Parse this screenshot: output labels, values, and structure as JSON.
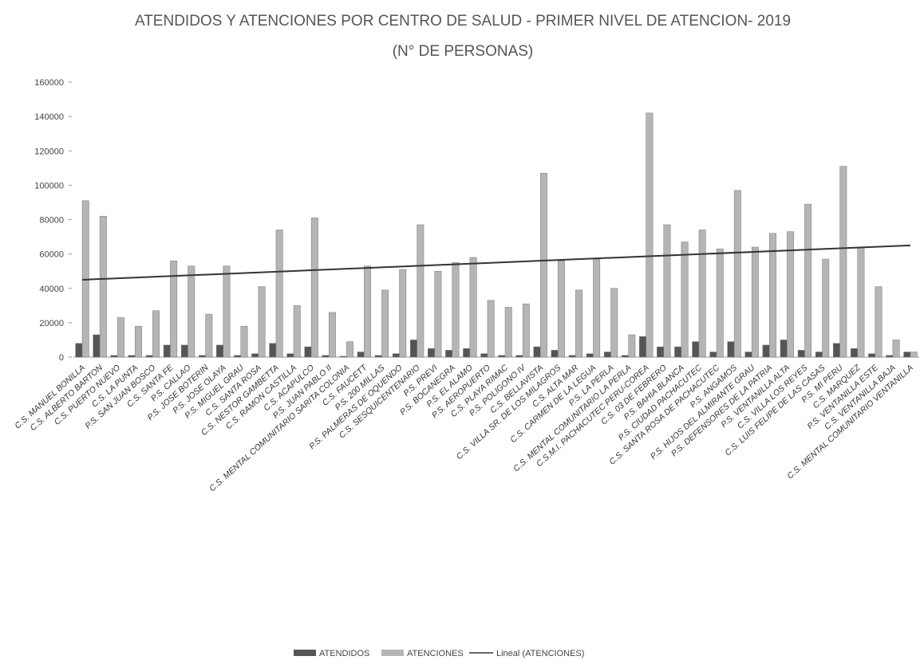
{
  "chart_data": {
    "type": "bar",
    "title": "ATENDIDOS Y ATENCIONES POR CENTRO DE SALUD - PRIMER NIVEL DE ATENCION- 2019",
    "subtitle": "(N° DE PERSONAS)",
    "categories": [
      "C.S. MANUEL BONILLA",
      "C.S. ALBERTO BARTON",
      "C.S. PUERTO NUEVO",
      "C.S. LA PUNTA",
      "P.S. SAN JUAN BOSCO",
      "C.S. SANTA FE",
      "P.S. CALLAO",
      "P.S. JOSE BOTERIN",
      "P.S. JOSE OLAYA",
      "P.S. MIGUEL GRAU",
      "C.S. SANTA ROSA",
      "C.S. NESTOR GAMBETTA",
      "C.S. RAMON CASTILLA",
      "C.S. ACAPULCO",
      "P.S. JUAN PABLO II",
      "C.S. MENTAL COMUNITARIO SARITA COLONIA",
      "C.S. FAUCETT",
      "P.S. 200 MILLAS",
      "P.S. PALMERAS DE OQUENDO",
      "C.S. SESQUICENTENARIO",
      "P.S. PREVI",
      "P.S. BOCANEGRA",
      "P.S. EL ALAMO",
      "P.S. AEROPUERTO",
      "C.S. PLAYA RIMAC",
      "P.S. POLIGONO IV",
      "C.S. BELLAVISTA",
      "C.S. VILLA SR. DE LOS MILAGROS",
      "C.S. ALTA MAR",
      "C.S. CARMEN DE LA LEGUA",
      "P.S. LA PERLA",
      "C.S. MENTAL COMUNITARIO LA PERLA",
      "C.S.M.I. PACHACUTEC PERU-COREA",
      "C.S. 03 DE FEBRERO",
      "P.S. BAHIA BLANCA",
      "P.S. CIUDAD PACHACUTEC",
      "C.S. SANTA ROSA DE PACHACUTEC",
      "P.S. ANGAMOS",
      "P.S. HIJOS DEL ALMIRANTE GRAU",
      "P.S. DEFENSORES DE LA PATRIA",
      "P.S. VENTANILLA ALTA",
      "C.S. VILLA LOS REYES",
      "C.S. LUIS FELIPE DE LAS CASAS",
      "P.S. MI PERU",
      "C.S. MARQUEZ",
      "P.S. VENTANILLA ESTE",
      "C.S. VENTANILLA BAJA",
      "C.S. MENTAL COMUNITARIO VENTANILLA"
    ],
    "series": [
      {
        "name": "ATENDIDOS",
        "color": "#555555",
        "values": [
          8000,
          13000,
          1000,
          1000,
          1000,
          7000,
          7000,
          1000,
          7000,
          1000,
          2000,
          8000,
          2000,
          6000,
          1000,
          500,
          3000,
          1000,
          2000,
          10000,
          5000,
          4000,
          5000,
          2000,
          1000,
          1000,
          6000,
          4000,
          1000,
          2000,
          3000,
          1000,
          12000,
          6000,
          6000,
          9000,
          3000,
          9000,
          3000,
          7000,
          10000,
          4000,
          3000,
          8000,
          5000,
          2000,
          1000,
          3000
        ]
      },
      {
        "name": "ATENCIONES",
        "color": "#b5b5b5",
        "values": [
          91000,
          82000,
          23000,
          18000,
          27000,
          56000,
          53000,
          25000,
          53000,
          18000,
          41000,
          74000,
          30000,
          81000,
          26000,
          9000,
          53000,
          39000,
          51000,
          77000,
          50000,
          55000,
          58000,
          33000,
          29000,
          31000,
          107000,
          56000,
          39000,
          57000,
          40000,
          13000,
          142000,
          77000,
          67000,
          74000,
          63000,
          97000,
          64000,
          72000,
          73000,
          89000,
          57000,
          111000,
          64000,
          41000,
          10000,
          3000
        ]
      }
    ],
    "trendline": {
      "name": "Lineal (ATENCIONES)",
      "color": "#333333",
      "start": 45000,
      "end": 65000
    },
    "ylim": [
      0,
      160000
    ],
    "yticks": [
      0,
      20000,
      40000,
      60000,
      80000,
      100000,
      120000,
      140000,
      160000
    ],
    "grid": false
  }
}
